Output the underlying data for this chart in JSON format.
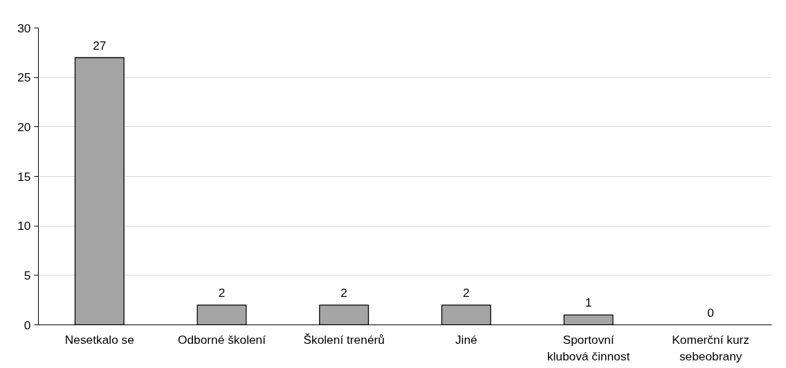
{
  "chart_data": {
    "type": "bar",
    "categories": [
      "Nesetkalo se",
      "Odborné školení",
      "Školení trenérů",
      "Jiné",
      "Sportovní\nklubová činnost",
      "Komerční kurz\nsebeobrany"
    ],
    "values": [
      27,
      2,
      2,
      2,
      1,
      0
    ],
    "color": "#a5a5a5",
    "ylim": [
      0,
      30
    ],
    "yticks": [
      0,
      5,
      10,
      15,
      20,
      25,
      30
    ],
    "grid": "y",
    "data_labels": true
  }
}
